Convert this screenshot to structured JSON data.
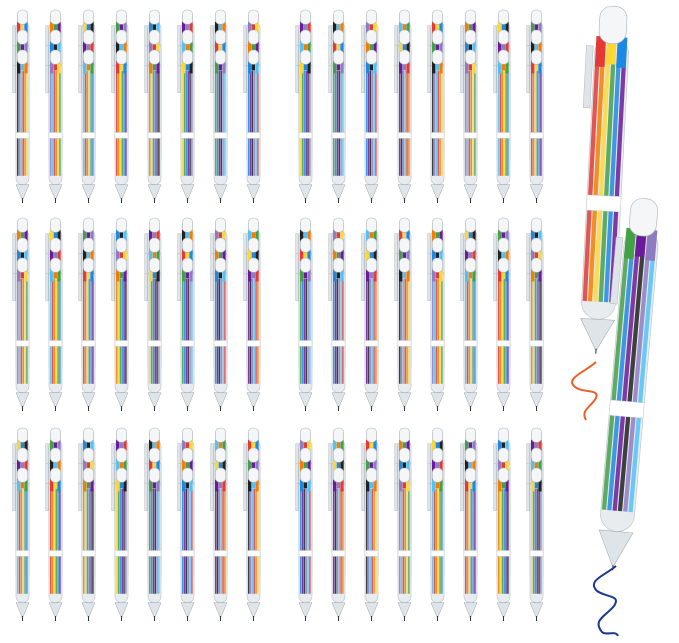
{
  "image": {
    "subject": "multicolor-retractable-pens",
    "background_color": "#ffffff",
    "group_count": 6,
    "ink_colors": [
      "#e53935",
      "#f57c00",
      "#fdd835",
      "#43a047",
      "#1e88e5",
      "#6a1b9a",
      "#212121",
      "#8e7cc3",
      "#4fc3f7"
    ],
    "barrel_color": "#e8ecef",
    "cap_color": "#f4f6f8",
    "scribble_colors": [
      "#e8632b",
      "#1a3a8f"
    ]
  }
}
